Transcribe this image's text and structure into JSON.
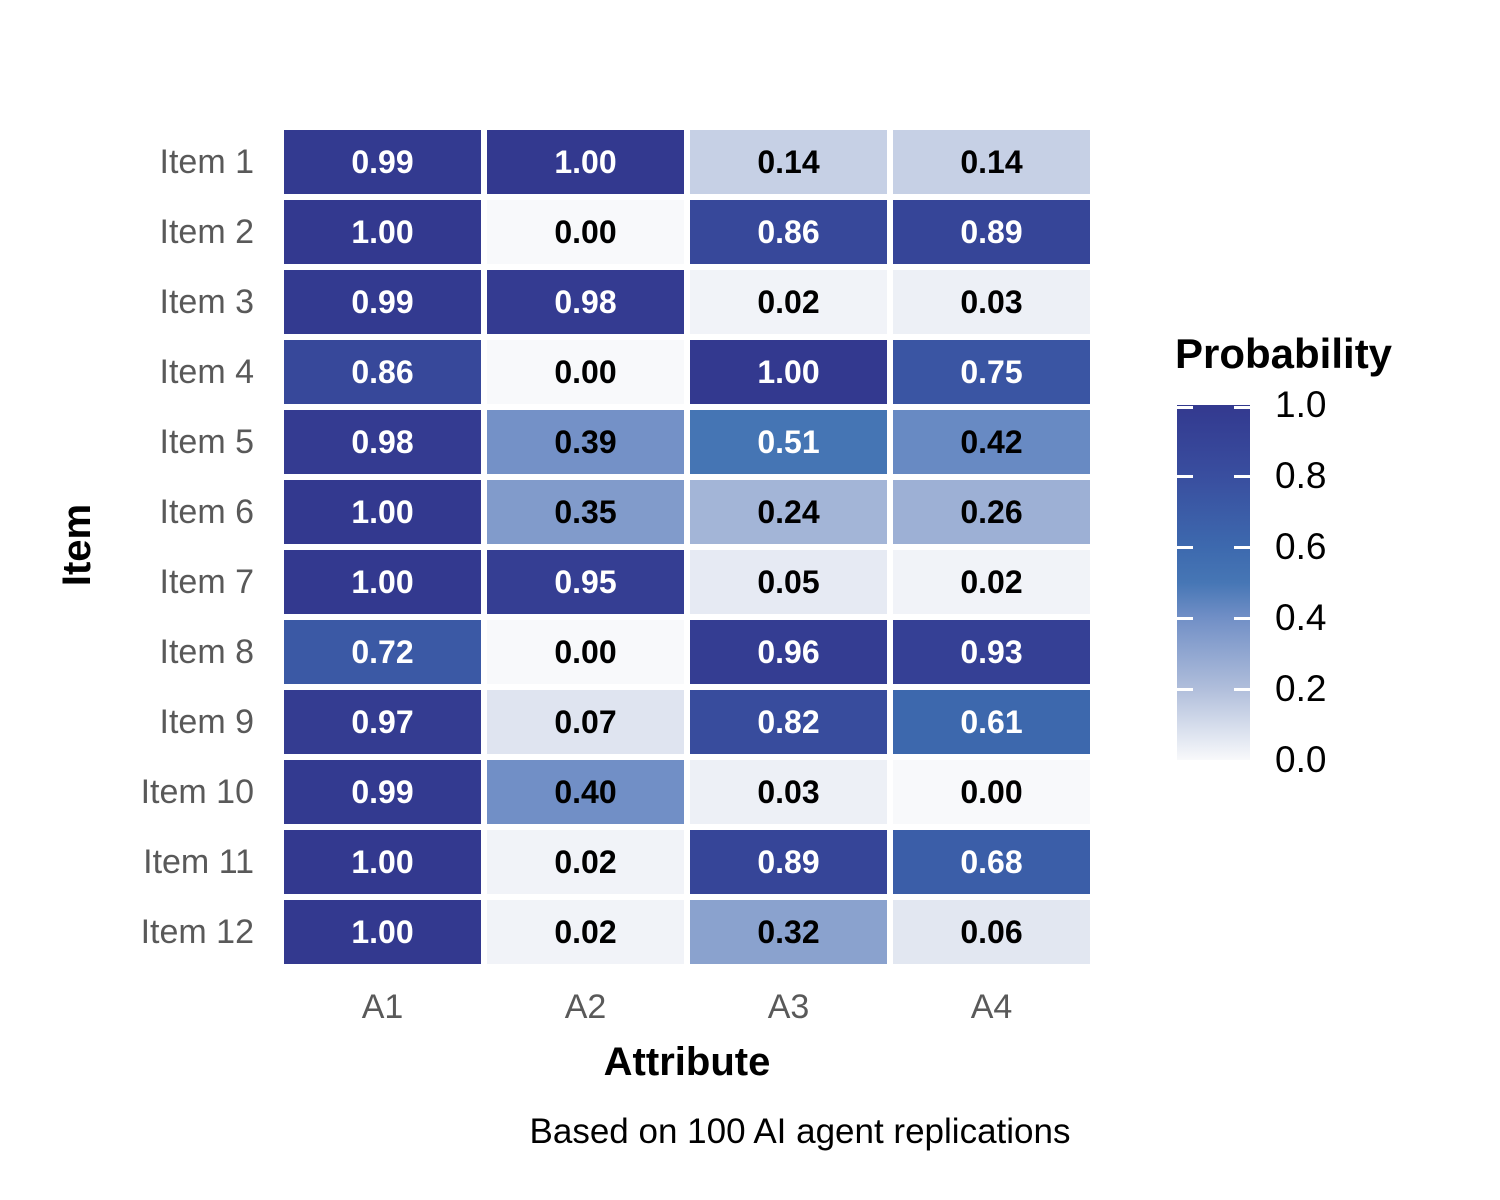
{
  "chart_data": {
    "type": "heatmap",
    "xlabel": "Attribute",
    "ylabel": "Item",
    "caption": "Based on 100 AI agent replications",
    "categories": [
      "A1",
      "A2",
      "A3",
      "A4"
    ],
    "items": [
      "Item 1",
      "Item 2",
      "Item 3",
      "Item 4",
      "Item 5",
      "Item 6",
      "Item 7",
      "Item 8",
      "Item 9",
      "Item 10",
      "Item 11",
      "Item 12"
    ],
    "values": [
      [
        0.99,
        1.0,
        0.14,
        0.14
      ],
      [
        1.0,
        0.0,
        0.86,
        0.89
      ],
      [
        0.99,
        0.98,
        0.02,
        0.03
      ],
      [
        0.86,
        0.0,
        1.0,
        0.75
      ],
      [
        0.98,
        0.39,
        0.51,
        0.42
      ],
      [
        1.0,
        0.35,
        0.24,
        0.26
      ],
      [
        1.0,
        0.95,
        0.05,
        0.02
      ],
      [
        0.72,
        0.0,
        0.96,
        0.93
      ],
      [
        0.97,
        0.07,
        0.82,
        0.61
      ],
      [
        0.99,
        0.4,
        0.03,
        0.0
      ],
      [
        1.0,
        0.02,
        0.89,
        0.68
      ],
      [
        1.0,
        0.02,
        0.32,
        0.06
      ]
    ],
    "value_decimals": 2,
    "legend": {
      "title": "Probability",
      "position": "right",
      "tick_labels": [
        "1.0",
        "0.8",
        "0.6",
        "0.4",
        "0.2",
        "0.0"
      ],
      "tick_values": [
        1.0,
        0.8,
        0.6,
        0.4,
        0.2,
        0.0
      ],
      "tick_marks": [
        1.0,
        0.8,
        0.6,
        0.4,
        0.2
      ],
      "range": [
        0.0,
        1.0
      ]
    },
    "colorscale": {
      "stops": [
        [
          0.0,
          "#f8f9fb"
        ],
        [
          0.2,
          "#b0bedb"
        ],
        [
          0.4,
          "#718fc6"
        ],
        [
          0.5,
          "#4676b5"
        ],
        [
          0.6,
          "#3d69ae"
        ],
        [
          0.8,
          "#394e9f"
        ],
        [
          1.0,
          "#33398f"
        ]
      ],
      "text_light": "#ffffff",
      "text_dark": "#000000",
      "text_threshold": 0.5
    },
    "layout": {
      "grid_on": false,
      "legend_position": "right"
    }
  }
}
